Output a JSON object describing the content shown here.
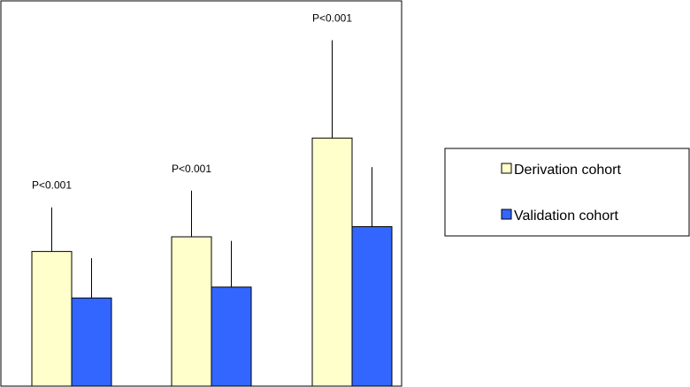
{
  "chart_data": {
    "type": "bar",
    "title": "",
    "xlabel": "",
    "ylabel": "",
    "categories": [
      "",
      "",
      ""
    ],
    "ylim": [
      0,
      1.0
    ],
    "grid": false,
    "legend_position": "right",
    "series": [
      {
        "name": "Derivation cohort",
        "color": "#ffffcc",
        "values": [
          0.3495,
          0.3876,
          0.6439
        ],
        "error_upper": [
          0.1144,
          0.1198,
          0.2541
        ]
      },
      {
        "name": "Validation cohort",
        "color": "#3366ff",
        "values": [
          0.2288,
          0.2571,
          0.4139
        ],
        "error_upper": [
          0.1035,
          0.1198,
          0.1547
        ]
      }
    ],
    "annotations": [
      "P<0.001",
      "P<0.001",
      "P<0.001"
    ]
  }
}
